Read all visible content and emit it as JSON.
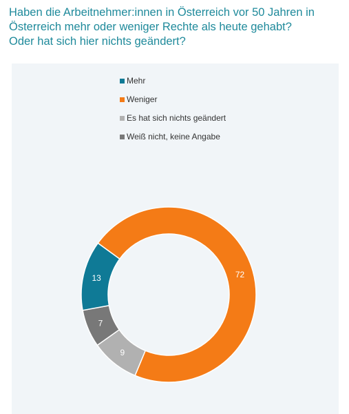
{
  "title": {
    "lines": [
      "Haben die Arbeitnehmer:innen in Österreich vor 50 Jahren in",
      "Österreich mehr oder weniger Rechte als heute gehabt?",
      "Oder hat sich hier nichts geändert?"
    ]
  },
  "chart_data": {
    "type": "pie",
    "donut": true,
    "legend_position": "top",
    "slices": [
      {
        "label": "Mehr",
        "value": 13,
        "color": "#0f7a96"
      },
      {
        "label": "Weniger",
        "value": 72,
        "color": "#f47b16"
      },
      {
        "label": "Es hat sich nichts geändert",
        "value": 9,
        "color": "#b1b1b1"
      },
      {
        "label": "Weiß nicht, keine Angabe",
        "value": 7,
        "color": "#787878"
      }
    ],
    "order_clockwise_from_top": [
      "Weniger",
      "Es hat sich nichts geändert",
      "Weiß nicht, keine Angabe",
      "Mehr"
    ]
  }
}
